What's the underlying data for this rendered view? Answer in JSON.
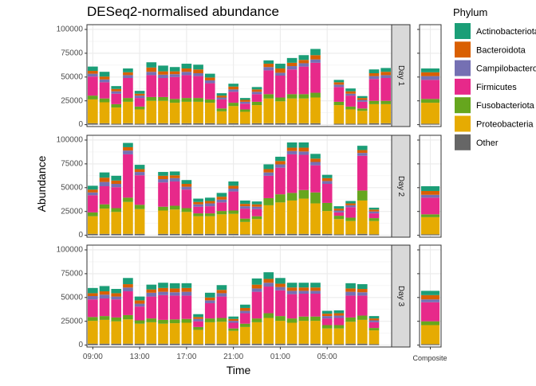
{
  "chart_data": {
    "type": "bar",
    "stacked": true,
    "faceted": true,
    "title": "DESeq2-normalised abundance",
    "xlabel": "Time",
    "ylabel": "Abundance",
    "ylim": [
      -2000,
      105000
    ],
    "y_ticks": [
      0,
      25000,
      50000,
      75000,
      100000
    ],
    "y_tick_labels": [
      "0",
      "25000",
      "50000",
      "75000",
      "100000"
    ],
    "x_ticks": [
      "09:00",
      "13:00",
      "17:00",
      "21:00",
      "01:00",
      "05:00"
    ],
    "x_tick_positions": [
      1,
      5,
      9,
      13,
      17,
      21
    ],
    "composite_label": "Composite",
    "facets": [
      "Day 1",
      "Day 2",
      "Day 3"
    ],
    "legend": {
      "title": "Phylum",
      "position": "right",
      "items": [
        {
          "name": "Actinobacteriota",
          "color": "#1b9e77"
        },
        {
          "name": "Bacteroidota",
          "color": "#d95f02"
        },
        {
          "name": "Campilobacterota",
          "color": "#7570b3"
        },
        {
          "name": "Firmicutes",
          "color": "#e7298a"
        },
        {
          "name": "Fusobacteriota",
          "color": "#66a61e"
        },
        {
          "name": "Proteobacteria",
          "color": "#e6ab02"
        },
        {
          "name": "Other",
          "color": "#666666"
        }
      ]
    },
    "stack_order": [
      "Other",
      "Proteobacteria",
      "Fusobacteriota",
      "Firmicutes",
      "Campilobacterota",
      "Bacteroidota",
      "Actinobacteriota"
    ],
    "panels": [
      {
        "facet": "Day 1",
        "bars": [
          {
            "time": 1,
            "values": [
              1500,
              25000,
              4000,
              20000,
              3000,
              3000,
              4500
            ]
          },
          {
            "time": 2,
            "values": [
              1500,
              22000,
              4000,
              17000,
              3000,
              3000,
              5000
            ]
          },
          {
            "time": 3,
            "values": [
              1000,
              17000,
              3500,
              11000,
              2500,
              2500,
              3000
            ]
          },
          {
            "time": 4,
            "values": [
              1500,
              22500,
              4000,
              21000,
              3000,
              3000,
              4000
            ]
          },
          {
            "time": 5,
            "values": [
              1000,
              15000,
              3000,
              9000,
              2500,
              2000,
              3000
            ]
          },
          {
            "time": 6,
            "values": [
              1500,
              23500,
              4000,
              23000,
              3500,
              4500,
              5500
            ]
          },
          {
            "time": 7,
            "values": [
              1500,
              23500,
              4000,
              20000,
              3500,
              3500,
              6000
            ]
          },
          {
            "time": 8,
            "values": [
              1500,
              21500,
              4000,
              23000,
              3000,
              3000,
              4500
            ]
          },
          {
            "time": 9,
            "values": [
              1500,
              22500,
              4000,
              24000,
              3500,
              3500,
              5000
            ]
          },
          {
            "time": 10,
            "values": [
              1500,
              22500,
              4000,
              23000,
              3000,
              4000,
              5000
            ]
          },
          {
            "time": 11,
            "values": [
              1500,
              21500,
              3500,
              17000,
              3000,
              3000,
              4000
            ]
          },
          {
            "time": 12,
            "values": [
              1000,
              13000,
              3000,
              9500,
              2000,
              2000,
              2500
            ]
          },
          {
            "time": 13,
            "values": [
              1500,
              18000,
              3500,
              11500,
              2500,
              3000,
              3000
            ]
          },
          {
            "time": 14,
            "values": [
              1000,
              12500,
              2500,
              6000,
              2000,
              2000,
              2000
            ]
          },
          {
            "time": 15,
            "values": [
              1500,
              19000,
              3500,
              8000,
              2500,
              2500,
              2500
            ]
          },
          {
            "time": 16,
            "values": [
              1500,
              26000,
              4500,
              25000,
              3500,
              3500,
              3500
            ]
          },
          {
            "time": 17,
            "values": [
              1500,
              23000,
              4000,
              23000,
              3000,
              4500,
              5000
            ]
          },
          {
            "time": 18,
            "values": [
              1500,
              26000,
              4500,
              26000,
              3500,
              3500,
              5000
            ]
          },
          {
            "time": 19,
            "values": [
              1500,
              26000,
              4500,
              29000,
              3500,
              3500,
              5000
            ]
          },
          {
            "time": 20,
            "values": [
              1500,
              27000,
              5000,
              31500,
              3500,
              4500,
              6500
            ]
          },
          {
            "time": 21,
            "values": null
          },
          {
            "time": 22,
            "values": [
              1000,
              19500,
              3500,
              15500,
              2500,
              2500,
              2500
            ]
          },
          {
            "time": 23,
            "values": [
              1000,
              15000,
              3000,
              11500,
              2000,
              2500,
              3000
            ]
          },
          {
            "time": 24,
            "values": [
              1000,
              13500,
              2500,
              7000,
              2000,
              2000,
              2000
            ]
          },
          {
            "time": 25,
            "values": [
              1500,
              20000,
              3500,
              23000,
              3000,
              3000,
              4000
            ]
          },
          {
            "time": 26,
            "values": [
              1500,
              20000,
              3500,
              24000,
              3000,
              3500,
              4000
            ]
          }
        ],
        "composite": [
          1000,
          22000,
          4000,
          20000,
          4000,
          4000,
          4000
        ]
      },
      {
        "facet": "Day 2",
        "bars": [
          {
            "time": 1,
            "values": [
              1500,
              18500,
              4000,
              18000,
              3000,
              3000,
              4000
            ]
          },
          {
            "time": 2,
            "values": [
              1500,
              26500,
              4500,
              19000,
              4500,
              4500,
              5500
            ]
          },
          {
            "time": 3,
            "values": [
              1500,
              23000,
              4000,
              22000,
              3500,
              3500,
              5000
            ]
          },
          {
            "time": 4,
            "values": [
              1500,
              33500,
              4500,
              45500,
              4000,
              3500,
              4500
            ]
          },
          {
            "time": 5,
            "values": [
              1500,
              26000,
              4500,
              31000,
              3500,
              3000,
              4500
            ]
          },
          {
            "time": 6,
            "values": null
          },
          {
            "time": 7,
            "values": [
              1500,
              24500,
              4000,
              25500,
              3500,
              3500,
              4000
            ]
          },
          {
            "time": 8,
            "values": [
              1500,
              25500,
              4000,
              25500,
              3500,
              3000,
              4000
            ]
          },
          {
            "time": 9,
            "values": [
              1500,
              23000,
              4000,
              19500,
              3000,
              3000,
              4000
            ]
          },
          {
            "time": 10,
            "values": [
              1500,
              18500,
              3000,
              7000,
              2500,
              2500,
              3500
            ]
          },
          {
            "time": 11,
            "values": [
              1500,
              18500,
              3000,
              7500,
              3000,
              2500,
              3500
            ]
          },
          {
            "time": 12,
            "values": [
              1500,
              20500,
              3500,
              9000,
              3000,
              3000,
              4000
            ]
          },
          {
            "time": 13,
            "values": [
              1500,
              21000,
              3500,
              20000,
              3000,
              3000,
              4500
            ]
          },
          {
            "time": 14,
            "values": [
              1000,
              13000,
              3500,
              10500,
              2500,
              2500,
              3500
            ]
          },
          {
            "time": 15,
            "values": [
              1000,
              16000,
              3000,
              7500,
              2500,
              2500,
              3000
            ]
          },
          {
            "time": 16,
            "values": [
              1500,
              30000,
              7500,
              23500,
              3500,
              3500,
              5000
            ]
          },
          {
            "time": 17,
            "values": [
              1500,
              33000,
              8500,
              28000,
              3500,
              3500,
              4500
            ]
          },
          {
            "time": 18,
            "values": [
              1500,
              35000,
              8000,
              40500,
              3500,
              3500,
              5500
            ]
          },
          {
            "time": 19,
            "values": [
              1500,
              37000,
              9000,
              37000,
              3500,
              4000,
              5500
            ]
          },
          {
            "time": 20,
            "values": [
              1500,
              32000,
              11500,
              28500,
              3500,
              3500,
              5000
            ]
          },
          {
            "time": 21,
            "values": [
              1500,
              24000,
              8500,
              20000,
              3000,
              3000,
              3500
            ]
          },
          {
            "time": 22,
            "values": [
              1000,
              16000,
              3500,
              3500,
              2000,
              2000,
              2500
            ]
          },
          {
            "time": 23,
            "values": [
              1000,
              14000,
              3500,
              11000,
              2000,
              2000,
              2500
            ]
          },
          {
            "time": 24,
            "values": [
              1500,
              35000,
              10500,
              36500,
              3000,
              3000,
              4500
            ]
          },
          {
            "time": 25,
            "values": [
              1000,
              14000,
              3000,
              5000,
              2000,
              2000,
              2000
            ]
          },
          {
            "time": 26,
            "values": null
          }
        ],
        "composite": [
          1000,
          18000,
          3000,
          17500,
          3000,
          4000,
          5000
        ]
      },
      {
        "facet": "Day 3",
        "bars": [
          {
            "time": 1,
            "values": [
              1500,
              24000,
              4000,
              18500,
              3500,
              3000,
              5500
            ]
          },
          {
            "time": 2,
            "values": [
              1500,
              25000,
              4000,
              18500,
              4000,
              3500,
              5500
            ]
          },
          {
            "time": 3,
            "values": [
              1500,
              23500,
              4000,
              19000,
              3000,
              3500,
              4500
            ]
          },
          {
            "time": 4,
            "values": [
              1500,
              25500,
              4500,
              25000,
              4000,
              3500,
              6500
            ]
          },
          {
            "time": 5,
            "values": [
              1500,
              21000,
              3500,
              14500,
              3000,
              3500,
              4000
            ]
          },
          {
            "time": 6,
            "values": [
              1500,
              22500,
              4000,
              23000,
              4000,
              3500,
              5000
            ]
          },
          {
            "time": 7,
            "values": [
              1500,
              21000,
              4000,
              26000,
              3500,
              4000,
              5500
            ]
          },
          {
            "time": 8,
            "values": [
              1500,
              21500,
              4000,
              25000,
              3500,
              4000,
              5500
            ]
          },
          {
            "time": 9,
            "values": [
              1500,
              22000,
              4000,
              24500,
              4000,
              4000,
              5000
            ]
          },
          {
            "time": 10,
            "values": [
              1000,
              15000,
              3000,
              6000,
              2500,
              2000,
              3000
            ]
          },
          {
            "time": 11,
            "values": [
              1500,
              22500,
              4000,
              16000,
              3000,
              3000,
              5000
            ]
          },
          {
            "time": 12,
            "values": [
              1500,
              23000,
              4000,
              22500,
              3500,
              3500,
              5000
            ]
          },
          {
            "time": 13,
            "values": [
              1000,
              14000,
              2500,
              6000,
              2000,
              2000,
              2500
            ]
          },
          {
            "time": 14,
            "values": [
              1500,
              17500,
              3500,
              11000,
              2500,
              3000,
              3500
            ]
          },
          {
            "time": 15,
            "values": [
              1500,
              22500,
              4000,
              28000,
              3500,
              4000,
              6500
            ]
          },
          {
            "time": 16,
            "values": [
              1500,
              27000,
              5000,
              28000,
              4000,
              4000,
              7000
            ]
          },
          {
            "time": 17,
            "values": [
              1500,
              24000,
              5000,
              27000,
              3500,
              3500,
              6000
            ]
          },
          {
            "time": 18,
            "values": [
              1500,
              22000,
              4500,
              25500,
              3500,
              3500,
              5000
            ]
          },
          {
            "time": 19,
            "values": [
              1500,
              24000,
              4500,
              24000,
              3000,
              3500,
              5000
            ]
          },
          {
            "time": 20,
            "values": [
              1500,
              24000,
              4500,
              24000,
              3000,
              3500,
              5000
            ]
          },
          {
            "time": 21,
            "values": [
              1000,
              16500,
              3500,
              7000,
              2500,
              2500,
              3000
            ]
          },
          {
            "time": 22,
            "values": [
              1000,
              16500,
              3500,
              7500,
              2500,
              2500,
              3000
            ]
          },
          {
            "time": 23,
            "values": [
              1500,
              23000,
              4500,
              23000,
              4000,
              3500,
              5500
            ]
          },
          {
            "time": 24,
            "values": [
              1500,
              25000,
              4500,
              21000,
              3500,
              3500,
              5000
            ]
          },
          {
            "time": 25,
            "values": [
              1000,
              14500,
              2500,
              6000,
              2000,
              2000,
              2500
            ]
          },
          {
            "time": 26,
            "values": null
          }
        ],
        "composite": [
          1000,
          20000,
          4000,
          20000,
          3000,
          4500,
          4500
        ]
      }
    ]
  }
}
